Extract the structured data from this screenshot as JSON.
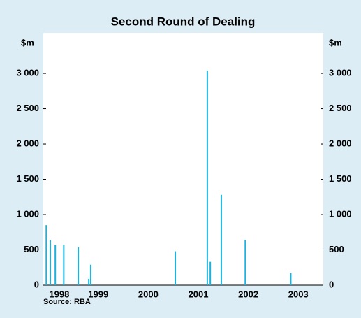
{
  "chart_data": {
    "type": "bar",
    "title": "Second Round of Dealing",
    "y_unit": "$m",
    "source": "Source: RBA",
    "x": [
      1998.46,
      1998.54,
      1998.64,
      1998.81,
      1999.1,
      1999.31,
      1999.35,
      2001.04,
      2001.68,
      2001.74,
      2001.96,
      2002.44,
      2003.35
    ],
    "values": [
      850,
      640,
      570,
      570,
      540,
      90,
      290,
      480,
      3040,
      330,
      1280,
      640,
      170
    ],
    "color": "#1cb2de",
    "xlim": [
      1998.4,
      2004.0
    ],
    "xticks": [
      {
        "value": 1998.72,
        "label": "1998"
      },
      {
        "value": 1999.5,
        "label": "1999"
      },
      {
        "value": 2000.5,
        "label": "2000"
      },
      {
        "value": 2001.5,
        "label": "2001"
      },
      {
        "value": 2002.5,
        "label": "2002"
      },
      {
        "value": 2003.5,
        "label": "2003"
      }
    ],
    "ylim": [
      0,
      3575
    ],
    "yticks": [
      0,
      500,
      {
        "value": 1000,
        "label": "1 000"
      },
      {
        "value": 1500,
        "label": "1 500"
      },
      {
        "value": 2000,
        "label": "2 000"
      },
      {
        "value": 2500,
        "label": "2 500"
      },
      {
        "value": 3000,
        "label": "3 000"
      }
    ]
  }
}
